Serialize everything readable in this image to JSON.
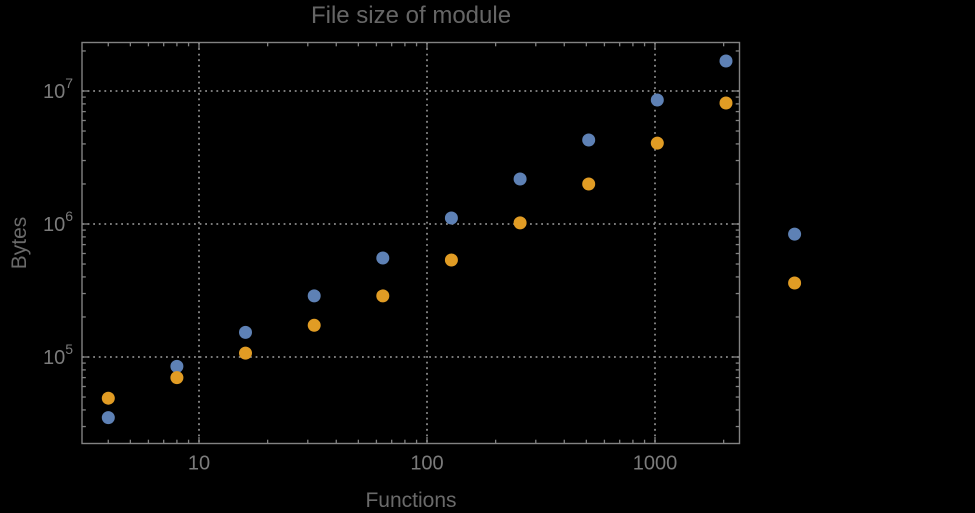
{
  "colors": {
    "background": "#000000",
    "frame": "#828282",
    "grid": "#8a8a8a",
    "title_text": "#666666",
    "axis_label_text": "#6a6a6a",
    "tick_label_text": "#7b7b7b",
    "series_blue": "#5e81b5",
    "series_orange": "#e19c24"
  },
  "chart_data": {
    "type": "scatter",
    "title": "File size of module",
    "xlabel": "Functions",
    "ylabel": "Bytes",
    "x_scale": "log",
    "y_scale": "log",
    "xlim": [
      3.07,
      2360
    ],
    "ylim": [
      22500,
      23300000
    ],
    "grid": "dotted gridlines at decade ticks, gray on black",
    "legend": "none",
    "x_ticks": [
      {
        "value": 10,
        "label": "10"
      },
      {
        "value": 100,
        "label": "100"
      },
      {
        "value": 1000,
        "label": "1000"
      }
    ],
    "y_ticks": [
      {
        "value": 100000,
        "base": "10",
        "exp": "5"
      },
      {
        "value": 1000000,
        "base": "10",
        "exp": "6"
      },
      {
        "value": 10000000,
        "base": "10",
        "exp": "7"
      }
    ],
    "x": [
      4,
      8,
      16,
      32,
      64,
      128,
      256,
      512,
      1024,
      2048,
      4096
    ],
    "series": [
      {
        "name": "series-1-blue",
        "color": "#5e81b5",
        "values": [
          35000,
          85000,
          153000,
          288000,
          555000,
          1110000,
          2180000,
          4280000,
          8550000,
          16800000,
          840000
        ]
      },
      {
        "name": "series-2-orange",
        "color": "#e19c24",
        "values": [
          49000,
          70000,
          107000,
          173000,
          288000,
          536000,
          1020000,
          2000000,
          4060000,
          8130000,
          360000
        ]
      }
    ],
    "note": "points of both series at x=4096 are drawn outside the right edge of the plot frame"
  }
}
